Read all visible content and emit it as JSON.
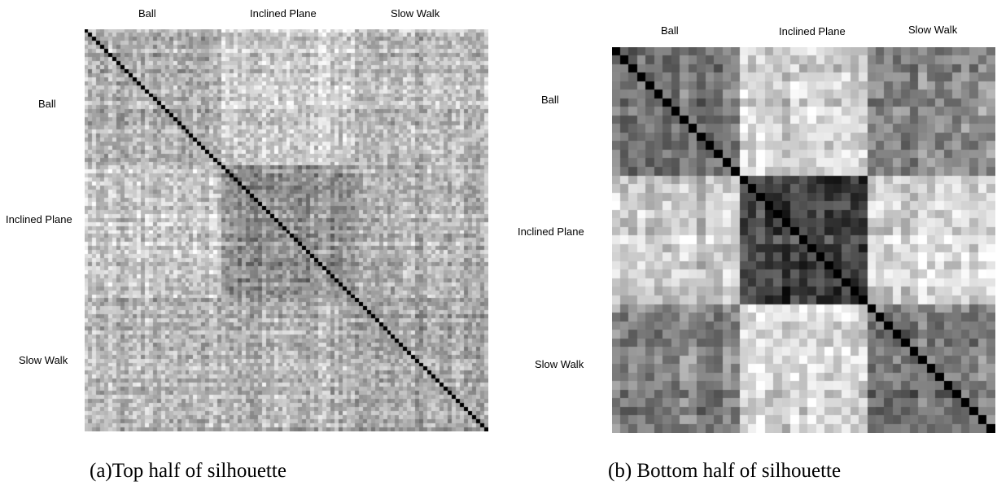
{
  "figure": {
    "panels": [
      {
        "caption": "(a)Top half of silhouette",
        "column_labels": [
          "Ball",
          "Inclined Plane",
          "Slow Walk"
        ],
        "row_labels": [
          "Ball",
          "Inclined Plane",
          "Slow Walk"
        ]
      },
      {
        "caption": "(b) Bottom half of silhouette",
        "column_labels": [
          "Ball",
          "Inclined Plane",
          "Slow Walk"
        ],
        "row_labels": [
          "Ball",
          "Inclined Plane",
          "Slow Walk"
        ]
      }
    ]
  },
  "chart_data": [
    {
      "type": "heatmap",
      "caption": "(a)Top half of silhouette",
      "categories_x": [
        "Ball",
        "Inclined Plane",
        "Slow Walk"
      ],
      "categories_y": [
        "Ball",
        "Inclined Plane",
        "Slow Walk"
      ],
      "matrix_size": 100,
      "colormap": "grayscale (dark = high similarity)",
      "diagonal_value": 1.0,
      "block_mean_similarity": [
        [
          0.3,
          0.2,
          0.28
        ],
        [
          0.2,
          0.42,
          0.3
        ],
        [
          0.28,
          0.3,
          0.36
        ]
      ],
      "grid": false,
      "legend": "none"
    },
    {
      "type": "heatmap",
      "caption": "(b) Bottom half of silhouette",
      "categories_x": [
        "Ball",
        "Inclined Plane",
        "Slow Walk"
      ],
      "categories_y": [
        "Ball",
        "Inclined Plane",
        "Slow Walk"
      ],
      "matrix_size": 45,
      "colormap": "grayscale (dark = high similarity)",
      "diagonal_value": 1.0,
      "block_mean_similarity": [
        [
          0.55,
          0.18,
          0.48
        ],
        [
          0.18,
          0.72,
          0.15
        ],
        [
          0.48,
          0.15,
          0.52
        ]
      ],
      "grid": false,
      "legend": "none"
    }
  ]
}
